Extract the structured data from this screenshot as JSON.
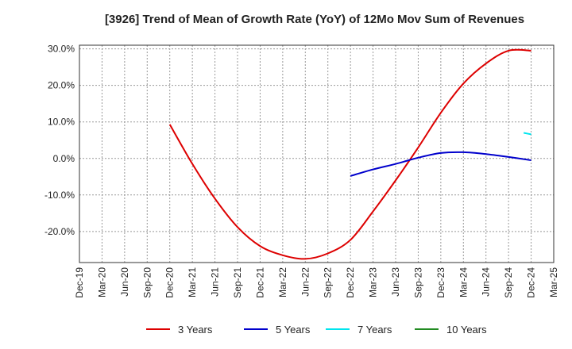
{
  "chart_data": {
    "type": "line",
    "title": "[3926]  Trend of Mean of Growth Rate (YoY) of 12Mo Mov Sum of Revenues",
    "xlabel": "",
    "ylabel": "",
    "ylim": [
      -28.5,
      31.0
    ],
    "grid": true,
    "legend_position": "bottom",
    "x_ticks": [
      "Dec-19",
      "Mar-20",
      "Jun-20",
      "Sep-20",
      "Dec-20",
      "Mar-21",
      "Jun-21",
      "Sep-21",
      "Dec-21",
      "Mar-22",
      "Jun-22",
      "Sep-22",
      "Dec-22",
      "Mar-23",
      "Jun-23",
      "Sep-23",
      "Dec-23",
      "Mar-24",
      "Jun-24",
      "Sep-24",
      "Dec-24",
      "Mar-25"
    ],
    "y_ticks": [
      30,
      20,
      10,
      0,
      -10,
      -20
    ],
    "y_tick_labels": [
      "30.0%",
      "20.0%",
      "10.0%",
      "0.0%",
      "-10.0%",
      "-20.0%"
    ],
    "series": [
      {
        "name": "3 Years",
        "color": "#dd0000",
        "x_index": [
          4,
          5,
          6,
          7,
          8,
          9,
          10,
          11,
          12,
          13,
          14,
          15,
          16,
          17,
          18,
          19,
          20
        ],
        "values": [
          9.3,
          -1.5,
          -11.0,
          -18.8,
          -24.0,
          -26.5,
          -27.5,
          -26.0,
          -22.3,
          -14.5,
          -6.0,
          3.0,
          12.5,
          20.5,
          26.0,
          29.5,
          29.5
        ]
      },
      {
        "name": "5 Years",
        "color": "#0000cc",
        "x_index": [
          12,
          13,
          14,
          15,
          16,
          17,
          18,
          19,
          20
        ],
        "values": [
          -4.8,
          -3.0,
          -1.5,
          0.2,
          1.5,
          1.7,
          1.2,
          0.4,
          -0.5
        ]
      },
      {
        "name": "7 Years",
        "color": "#00e5ee",
        "x_index": [
          19.67,
          20
        ],
        "values": [
          7.0,
          6.6
        ]
      },
      {
        "name": "10 Years",
        "color": "#228b22",
        "x_index": [],
        "values": []
      }
    ]
  }
}
